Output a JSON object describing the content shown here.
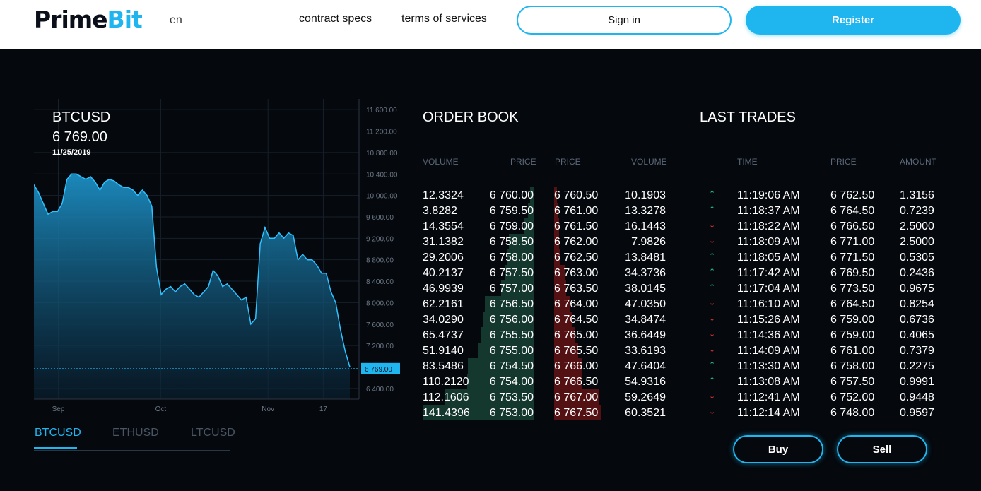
{
  "header": {
    "logo_part1": "Prime",
    "logo_part2": "Bit",
    "lang": "en",
    "nav": [
      "contract specs",
      "terms of services"
    ],
    "signin_label": "Sign in",
    "register_label": "Register"
  },
  "chart": {
    "symbol": "BTCUSD",
    "last_price": "6 769.00",
    "date": "11/25/2019",
    "tabs": [
      "BTCUSD",
      "ETHUSD",
      "LTCUSD"
    ],
    "active_tab": 0,
    "price_tag": "6 769.00"
  },
  "chart_data": {
    "type": "area",
    "yticks": [
      "11 600.00",
      "11 200.00",
      "10 800.00",
      "10 400.00",
      "10 000.00",
      "9 600.00",
      "9 200.00",
      "8 800.00",
      "8 400.00",
      "8 000.00",
      "7 600.00",
      "7 200.00",
      "6 400.00"
    ],
    "ytick_values": [
      11600,
      11200,
      10800,
      10400,
      10000,
      9600,
      9200,
      8800,
      8400,
      8000,
      7600,
      7200,
      6400
    ],
    "xticks": [
      "Sep",
      "Oct",
      "Nov",
      "17"
    ],
    "ylim": [
      6200,
      11800
    ],
    "current_value": 6769,
    "series": [
      {
        "values": [
          10200,
          10050,
          9850,
          9650,
          9700,
          9700,
          9850,
          10300,
          10400,
          10400,
          10350,
          10300,
          10350,
          10250,
          10100,
          10250,
          10300,
          10270,
          10200,
          10150,
          10150,
          10100,
          10000,
          10100,
          10000,
          9800,
          8650,
          8150,
          8250,
          8300,
          8200,
          8300,
          8350,
          8250,
          8150,
          8100,
          8200,
          8300,
          8600,
          8500,
          8300,
          8350,
          8250,
          8150,
          8050,
          8100,
          7600,
          7700,
          9100,
          9400,
          9200,
          9200,
          9300,
          9200,
          9300,
          9250,
          8800,
          8900,
          8800,
          8800,
          8700,
          8550,
          8550,
          8200,
          8000,
          7500,
          7100,
          6800
        ]
      }
    ]
  },
  "order_book": {
    "title": "ORDER BOOK",
    "headers": [
      "VOLUME",
      "PRICE",
      "PRICE",
      "VOLUME"
    ],
    "rows": [
      {
        "bid_vol": "12.3324",
        "bid_price": "6 760.00",
        "ask_price": "6 760.50",
        "ask_vol": "10.1903",
        "bid_depth": 0.03,
        "ask_depth": 0.06
      },
      {
        "bid_vol": "3.8282",
        "bid_price": "6 759.50",
        "ask_price": "6 761.00",
        "ask_vol": "13.3278",
        "bid_depth": 0.05,
        "ask_depth": 0.08
      },
      {
        "bid_vol": "14.3554",
        "bid_price": "6 759.00",
        "ask_price": "6 761.50",
        "ask_vol": "16.1443",
        "bid_depth": 0.08,
        "ask_depth": 0.1
      },
      {
        "bid_vol": "31.1382",
        "bid_price": "6 758.50",
        "ask_price": "6 762.00",
        "ask_vol": "7.9826",
        "bid_depth": 0.22,
        "ask_depth": 0.11
      },
      {
        "bid_vol": "29.2006",
        "bid_price": "6 758.00",
        "ask_price": "6 762.50",
        "ask_vol": "13.8481",
        "bid_depth": 0.24,
        "ask_depth": 0.14
      },
      {
        "bid_vol": "40.2137",
        "bid_price": "6 757.50",
        "ask_price": "6 763.00",
        "ask_vol": "34.3736",
        "bid_depth": 0.26,
        "ask_depth": 0.22
      },
      {
        "bid_vol": "46.9939",
        "bid_price": "6 757.00",
        "ask_price": "6 763.50",
        "ask_vol": "38.0145",
        "bid_depth": 0.29,
        "ask_depth": 0.26
      },
      {
        "bid_vol": "62.2161",
        "bid_price": "6 756.50",
        "ask_price": "6 764.00",
        "ask_vol": "47.0350",
        "bid_depth": 0.44,
        "ask_depth": 0.33
      },
      {
        "bid_vol": "34.0290",
        "bid_price": "6 756.00",
        "ask_price": "6 764.50",
        "ask_vol": "34.8474",
        "bid_depth": 0.45,
        "ask_depth": 0.38
      },
      {
        "bid_vol": "65.4737",
        "bid_price": "6 755.50",
        "ask_price": "6 765.00",
        "ask_vol": "36.6449",
        "bid_depth": 0.48,
        "ask_depth": 0.45
      },
      {
        "bid_vol": "51.9140",
        "bid_price": "6 755.00",
        "ask_price": "6 765.50",
        "ask_vol": "33.6193",
        "bid_depth": 0.5,
        "ask_depth": 0.5
      },
      {
        "bid_vol": "83.5486",
        "bid_price": "6 754.50",
        "ask_price": "6 766.00",
        "ask_vol": "47.6404",
        "bid_depth": 0.59,
        "ask_depth": 0.58
      },
      {
        "bid_vol": "110.2120",
        "bid_price": "6 754.00",
        "ask_price": "6 766.50",
        "ask_vol": "54.9316",
        "bid_depth": 0.6,
        "ask_depth": 0.6
      },
      {
        "bid_vol": "112.1606",
        "bid_price": "6 753.50",
        "ask_price": "6 767.00",
        "ask_vol": "59.2649",
        "bid_depth": 0.8,
        "ask_depth": 0.95
      },
      {
        "bid_vol": "141.4396",
        "bid_price": "6 753.00",
        "ask_price": "6 767.50",
        "ask_vol": "60.3521",
        "bid_depth": 1.0,
        "ask_depth": 1.0
      }
    ]
  },
  "last_trades": {
    "title": "LAST TRADES",
    "headers": [
      "TIME",
      "PRICE",
      "AMOUNT"
    ],
    "rows": [
      {
        "dir": "up",
        "time": "11:19:06 AM",
        "price": "6 762.50",
        "amount": "1.3156"
      },
      {
        "dir": "up",
        "time": "11:18:37 AM",
        "price": "6 764.50",
        "amount": "0.7239"
      },
      {
        "dir": "down",
        "time": "11:18:22 AM",
        "price": "6 766.50",
        "amount": "2.5000"
      },
      {
        "dir": "down",
        "time": "11:18:09 AM",
        "price": "6 771.00",
        "amount": "2.5000"
      },
      {
        "dir": "up",
        "time": "11:18:05 AM",
        "price": "6 771.50",
        "amount": "0.5305"
      },
      {
        "dir": "up",
        "time": "11:17:42 AM",
        "price": "6 769.50",
        "amount": "0.2436"
      },
      {
        "dir": "up",
        "time": "11:17:04 AM",
        "price": "6 773.50",
        "amount": "0.9675"
      },
      {
        "dir": "down",
        "time": "11:16:10 AM",
        "price": "6 764.50",
        "amount": "0.8254"
      },
      {
        "dir": "down",
        "time": "11:15:26 AM",
        "price": "6 759.00",
        "amount": "0.6736"
      },
      {
        "dir": "down",
        "time": "11:14:36 AM",
        "price": "6 759.00",
        "amount": "0.4065"
      },
      {
        "dir": "down",
        "time": "11:14:09 AM",
        "price": "6 761.00",
        "amount": "0.7379"
      },
      {
        "dir": "up",
        "time": "11:13:30 AM",
        "price": "6 758.00",
        "amount": "0.2275"
      },
      {
        "dir": "up",
        "time": "11:13:08 AM",
        "price": "6 757.50",
        "amount": "0.9991"
      },
      {
        "dir": "down",
        "time": "11:12:41 AM",
        "price": "6 752.00",
        "amount": "0.9448"
      },
      {
        "dir": "down",
        "time": "11:12:14 AM",
        "price": "6 748.00",
        "amount": "0.9597"
      }
    ],
    "buy_label": "Buy",
    "sell_label": "Sell"
  },
  "colors": {
    "accent": "#1fb6f0",
    "up": "#27c59a",
    "down": "#e2352f",
    "bid_bar": "#22604a",
    "ask_bar": "#761618"
  }
}
